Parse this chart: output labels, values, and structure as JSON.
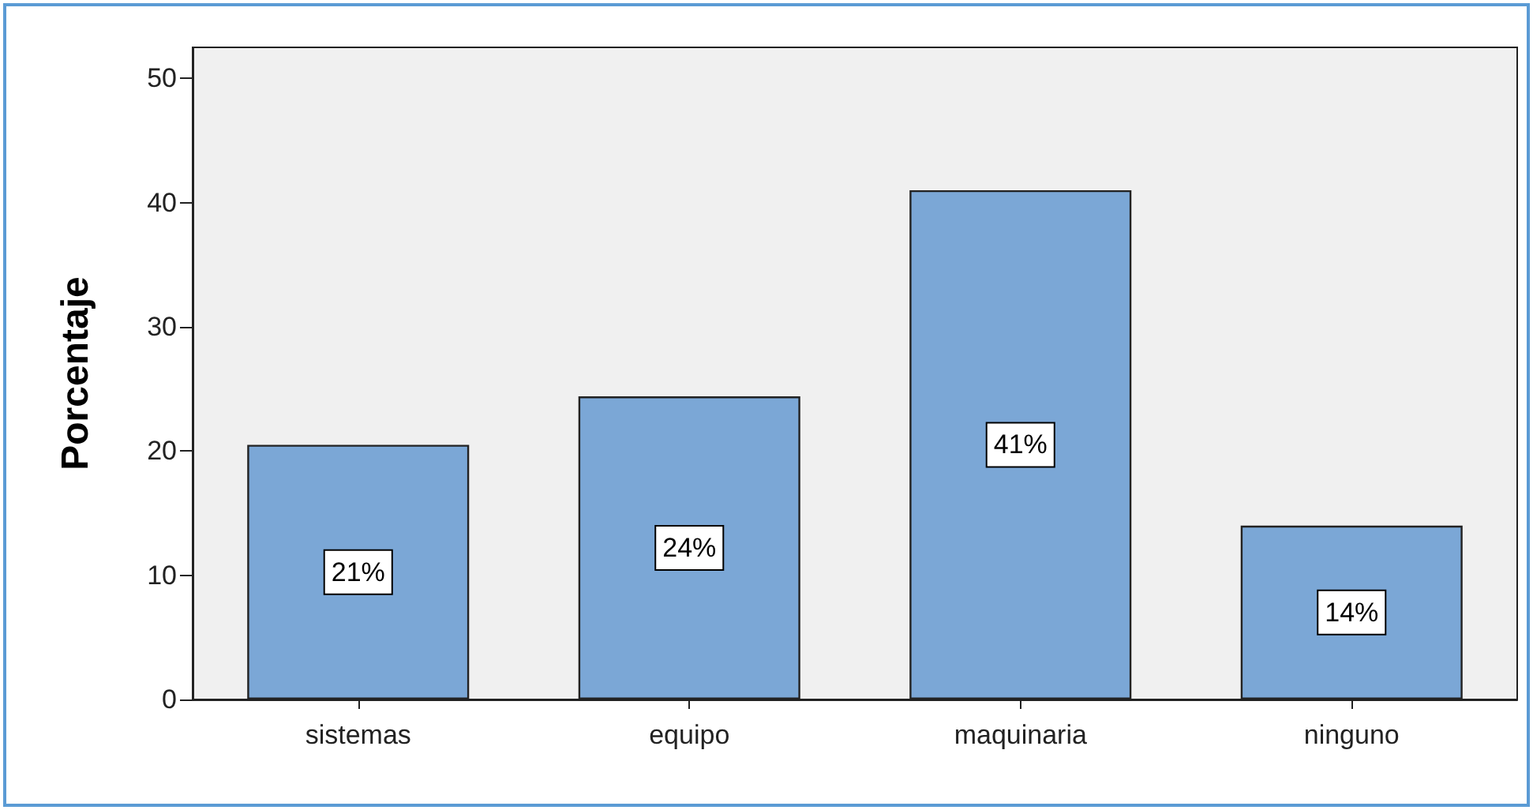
{
  "chart_data": {
    "type": "bar",
    "ylabel": "Porcentaje",
    "categories": [
      "sistemas",
      "equipo",
      "maquinaria",
      "ninguno"
    ],
    "values": [
      20.5,
      24.4,
      41,
      14
    ],
    "value_labels": [
      "21%",
      "24%",
      "41%",
      "14%"
    ],
    "color": "#7ba7d6",
    "ylim": [
      0,
      52.5
    ],
    "yticks": [
      0,
      10,
      20,
      30,
      40,
      50
    ],
    "grid": false
  }
}
